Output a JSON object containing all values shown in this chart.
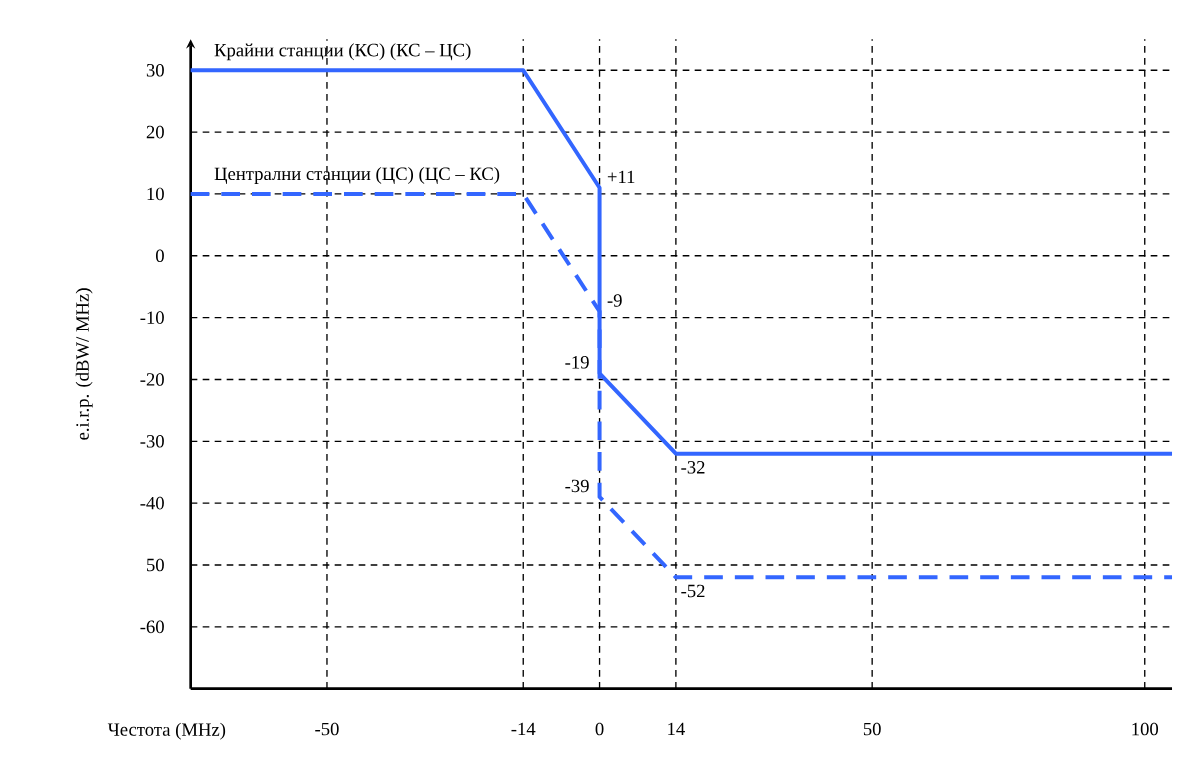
{
  "chart_data": {
    "type": "line",
    "xlabel": "Честота (MHz)",
    "ylabel": "e.i.r.p. (dBW/ MHz)",
    "xlim": [
      -75,
      105
    ],
    "ylim": [
      -70,
      35
    ],
    "xticks": [
      -50,
      -14,
      0,
      14,
      50,
      100
    ],
    "yticks": [
      30,
      20,
      10,
      0,
      -10,
      -20,
      -30,
      -40,
      {
        "value": -50,
        "label": "50"
      },
      -60
    ],
    "grid": true,
    "legend": false,
    "marker": "none",
    "series": [
      {
        "name": "Крайни станции (КС) (КС – ЦС)",
        "color": "#3366ff",
        "line_style": "solid",
        "x": [
          -75,
          -14,
          0,
          0,
          14,
          105
        ],
        "values": [
          30,
          30,
          11,
          -19,
          -32,
          -32
        ],
        "value_labels": [
          null,
          null,
          "+11",
          "-19",
          "-32",
          null
        ]
      },
      {
        "name": "Централни станции (ЦС) (ЦС – КС)",
        "color": "#3366ff",
        "line_style": "dashed",
        "x": [
          -75,
          -14,
          0,
          0,
          14,
          105
        ],
        "values": [
          10,
          10,
          -9,
          -39,
          -52,
          -52
        ],
        "value_labels": [
          null,
          null,
          "-9",
          "-39",
          "-52",
          null
        ]
      }
    ]
  }
}
